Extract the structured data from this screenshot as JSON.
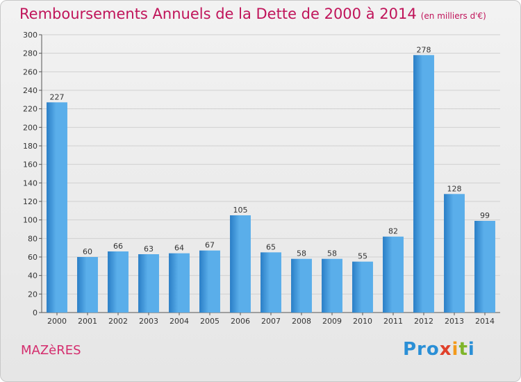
{
  "header": {
    "title": "Remboursements Annuels de la Dette de 2000 à 2014",
    "unit": "(en milliers d'€)"
  },
  "footer": {
    "commune": "MAZèRES",
    "logo_parts": [
      "Pro",
      "x",
      "i",
      "t",
      "i"
    ]
  },
  "colors": {
    "bar_light": "#5aaeea",
    "bar_dark": "#2a7ec6",
    "title": "#c0145a",
    "grid": "#d0d0d0"
  },
  "chart_data": {
    "type": "bar",
    "categories": [
      "2000",
      "2001",
      "2002",
      "2003",
      "2004",
      "2005",
      "2006",
      "2007",
      "2008",
      "2009",
      "2010",
      "2011",
      "2012",
      "2013",
      "2014"
    ],
    "values": [
      227,
      60,
      66,
      63,
      64,
      67,
      105,
      65,
      58,
      58,
      55,
      82,
      278,
      128,
      99
    ],
    "title": "Remboursements Annuels de la Dette de 2000 à 2014",
    "ylim": [
      0,
      300
    ],
    "ytick_step": 20,
    "grid": true,
    "data_labels": true
  }
}
